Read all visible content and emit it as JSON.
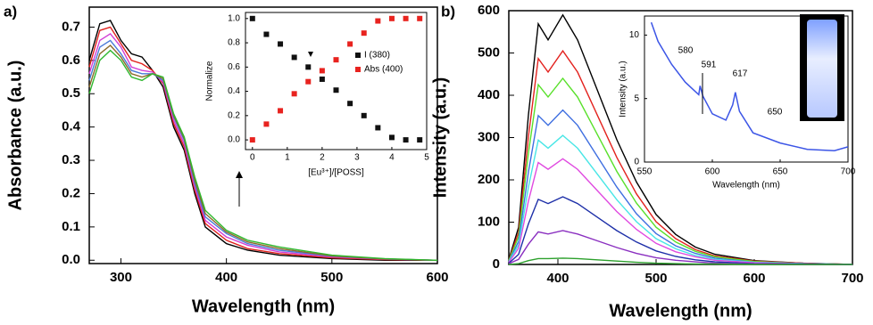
{
  "chart_data": [
    {
      "type": "line",
      "panel_label": "a)",
      "xlabel": "Wavelength (nm)",
      "ylabel": "Absorbance (a.u.)",
      "x": [
        270,
        280,
        290,
        300,
        310,
        320,
        330,
        340,
        350,
        360,
        370,
        380,
        400,
        420,
        450,
        500,
        550,
        600
      ],
      "series": [
        {
          "color": "#000000",
          "values": [
            0.6,
            0.71,
            0.72,
            0.66,
            0.62,
            0.61,
            0.57,
            0.52,
            0.4,
            0.33,
            0.2,
            0.1,
            0.05,
            0.03,
            0.015,
            0.005,
            0,
            0
          ]
        },
        {
          "color": "#e0201c",
          "values": [
            0.58,
            0.69,
            0.7,
            0.65,
            0.6,
            0.59,
            0.57,
            0.53,
            0.41,
            0.34,
            0.21,
            0.11,
            0.06,
            0.035,
            0.02,
            0.007,
            0.002,
            0
          ]
        },
        {
          "color": "#d23fd6",
          "values": [
            0.56,
            0.66,
            0.68,
            0.64,
            0.58,
            0.57,
            0.565,
            0.535,
            0.42,
            0.35,
            0.22,
            0.12,
            0.07,
            0.045,
            0.025,
            0.01,
            0.003,
            0
          ]
        },
        {
          "color": "#4a7bd8",
          "values": [
            0.54,
            0.64,
            0.66,
            0.62,
            0.57,
            0.56,
            0.56,
            0.54,
            0.43,
            0.36,
            0.23,
            0.13,
            0.08,
            0.05,
            0.03,
            0.012,
            0.004,
            0
          ]
        },
        {
          "color": "#8b6a2a",
          "values": [
            0.52,
            0.62,
            0.645,
            0.61,
            0.56,
            0.55,
            0.56,
            0.545,
            0.435,
            0.365,
            0.24,
            0.14,
            0.085,
            0.055,
            0.035,
            0.013,
            0.004,
            0
          ]
        },
        {
          "color": "#2fb82f",
          "values": [
            0.5,
            0.6,
            0.63,
            0.6,
            0.55,
            0.54,
            0.56,
            0.55,
            0.44,
            0.37,
            0.25,
            0.15,
            0.09,
            0.06,
            0.04,
            0.015,
            0.005,
            0
          ]
        }
      ],
      "xlim": [
        270,
        600
      ],
      "xticks": [
        300,
        400,
        500,
        600
      ],
      "ylim": [
        -0.01,
        0.76
      ],
      "yticks": [
        {
          "value": 0,
          "label": "0.0"
        },
        0.1,
        0.2,
        0.3,
        0.4,
        0.5,
        0.6,
        0.7
      ]
    },
    {
      "type": "scatter",
      "xlabel": "[Eu³⁺]/[POSS]",
      "ylabel": "Normalize",
      "legend": "upper right",
      "x": [
        0,
        0.4,
        0.8,
        1.2,
        1.6,
        2.0,
        2.4,
        2.8,
        3.2,
        3.6,
        4.0,
        4.4,
        4.8
      ],
      "series": [
        {
          "name": "I (380)",
          "color": "#111111",
          "values": [
            1.0,
            0.87,
            0.79,
            0.68,
            0.6,
            0.5,
            0.41,
            0.3,
            0.2,
            0.1,
            0.02,
            0.0,
            0.0
          ]
        },
        {
          "name": "Abs (400)",
          "color": "#e8231f",
          "values": [
            0.0,
            0.13,
            0.24,
            0.38,
            0.48,
            0.57,
            0.66,
            0.79,
            0.88,
            0.98,
            1.0,
            1.0,
            1.0
          ]
        }
      ],
      "xlim": [
        -0.2,
        5
      ],
      "xticks": [
        0,
        1,
        2,
        3,
        4,
        5
      ],
      "ylim": [
        -0.08,
        1.05
      ],
      "yticks": [
        {
          "value": 0,
          "label": "0.0"
        },
        0.2,
        0.4,
        0.6,
        0.8,
        {
          "value": 1,
          "label": "1.0"
        }
      ]
    },
    {
      "type": "line",
      "panel_label": "b)",
      "xlabel": "Wavelength (nm)",
      "ylabel": "Intensity (a.u.)",
      "x": [
        350,
        360,
        370,
        380,
        390,
        405,
        420,
        440,
        460,
        480,
        500,
        520,
        540,
        560,
        600,
        650,
        700
      ],
      "series": [
        {
          "color": "#000000",
          "values": [
            12,
            88,
            354,
            569,
            531,
            590,
            531,
            413,
            295,
            195,
            118,
            71,
            41,
            24,
            9,
            3,
            0
          ]
        },
        {
          "color": "#e3221e",
          "values": [
            10,
            76,
            303,
            487,
            455,
            505,
            455,
            354,
            253,
            167,
            101,
            61,
            35,
            20,
            8,
            3,
            0
          ]
        },
        {
          "color": "#58e02a",
          "values": [
            9,
            66,
            264,
            425,
            396,
            440,
            396,
            308,
            220,
            145,
            88,
            53,
            31,
            18,
            7,
            2,
            0
          ]
        },
        {
          "color": "#3f6fe0",
          "values": [
            7,
            55,
            219,
            352,
            329,
            365,
            329,
            256,
            183,
            120,
            73,
            44,
            26,
            15,
            5,
            2,
            0
          ]
        },
        {
          "color": "#48e6e6",
          "values": [
            6,
            46,
            183,
            294,
            275,
            305,
            275,
            214,
            153,
            101,
            61,
            37,
            21,
            12,
            5,
            2,
            0
          ]
        },
        {
          "color": "#e04ae0",
          "values": [
            5,
            38,
            150,
            241,
            225,
            250,
            225,
            175,
            125,
            83,
            50,
            30,
            18,
            10,
            4,
            1,
            0
          ]
        },
        {
          "color": "#1d2fa8",
          "values": [
            3,
            24,
            96,
            154,
            144,
            160,
            144,
            112,
            80,
            53,
            32,
            19,
            11,
            6,
            2,
            1,
            0
          ]
        },
        {
          "color": "#8a2fc0",
          "values": [
            2,
            12,
            48,
            77,
            72,
            80,
            72,
            56,
            40,
            26,
            16,
            10,
            6,
            3,
            1,
            0,
            0
          ]
        },
        {
          "color": "#2ca02c",
          "values": [
            0,
            2,
            9,
            14,
            14,
            15,
            14,
            11,
            8,
            5,
            3,
            2,
            1,
            1,
            0,
            0,
            0
          ]
        }
      ],
      "xlim": [
        350,
        700
      ],
      "xticks": [
        400,
        500,
        600,
        700
      ],
      "ylim": [
        0,
        600
      ],
      "yticks": [
        0,
        100,
        200,
        300,
        400,
        500,
        600
      ]
    },
    {
      "type": "line",
      "xlabel": "Wavelength (nm)",
      "ylabel": "Intensity (a.u.)",
      "annotations": [
        "580",
        "591",
        "617",
        "650"
      ],
      "x": [
        555,
        560,
        570,
        580,
        585,
        590,
        591,
        593,
        600,
        610,
        615,
        617,
        620,
        630,
        650,
        670,
        690,
        700
      ],
      "series": [
        {
          "color": "#3c55e6",
          "values": [
            11,
            9.5,
            7.7,
            6.3,
            5.8,
            5.3,
            6,
            5.2,
            3.8,
            3.3,
            4.5,
            5.5,
            4,
            2.3,
            1.5,
            1.0,
            0.9,
            1.2
          ]
        }
      ],
      "xlim": [
        550,
        700
      ],
      "xticks": [
        550,
        600,
        650,
        700
      ],
      "ylim": [
        0,
        11.5
      ],
      "yticks": [
        0,
        5,
        10
      ]
    }
  ]
}
